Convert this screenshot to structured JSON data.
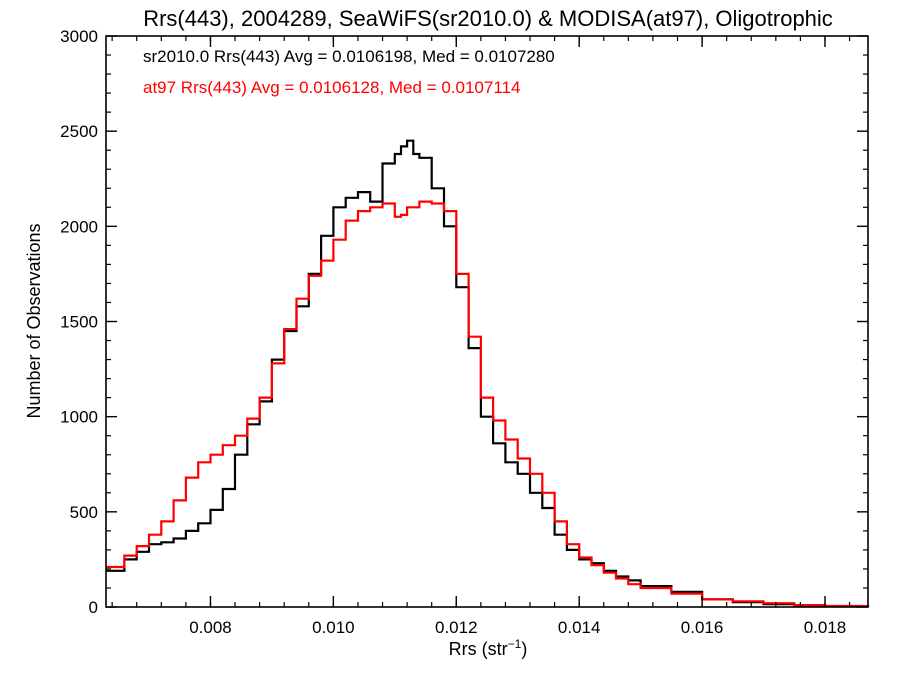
{
  "chart_data": {
    "type": "line",
    "title": "Rrs(443), 2004289, SeaWiFS(sr2010.0) & MODISA(at97), Oligotrophic",
    "xlabel_main": "Rrs (str",
    "xlabel_sup": "−1",
    "xlabel_close": ")",
    "ylabel": "Number of Observations",
    "xlim": [
      0.0063,
      0.0187
    ],
    "ylim": [
      0,
      3000
    ],
    "xticks": [
      0.008,
      0.01,
      0.012,
      0.014,
      0.016,
      0.018
    ],
    "xtick_labels": [
      "0.008",
      "0.010",
      "0.012",
      "0.014",
      "0.016",
      "0.018"
    ],
    "yticks": [
      0,
      500,
      1000,
      1500,
      2000,
      2500,
      3000
    ],
    "ytick_labels": [
      "0",
      "500",
      "1000",
      "1500",
      "2000",
      "2500",
      "3000"
    ],
    "grid": false,
    "legend_position": "top-left",
    "series": [
      {
        "name": "sr2010.0 Rrs(443) Avg = 0.0106198, Med = 0.0107280",
        "color": "#000000",
        "style": "step",
        "x": [
          0.0063,
          0.0066,
          0.0068,
          0.007,
          0.0072,
          0.0074,
          0.0076,
          0.0078,
          0.008,
          0.0082,
          0.0084,
          0.0086,
          0.0088,
          0.009,
          0.0092,
          0.0094,
          0.0096,
          0.0098,
          0.01,
          0.0102,
          0.0104,
          0.0106,
          0.0108,
          0.011,
          0.0111,
          0.0112,
          0.0113,
          0.0114,
          0.0116,
          0.0118,
          0.012,
          0.0122,
          0.0124,
          0.0126,
          0.0128,
          0.013,
          0.0132,
          0.0134,
          0.0136,
          0.0138,
          0.014,
          0.0142,
          0.0144,
          0.0146,
          0.0148,
          0.015,
          0.0155,
          0.016,
          0.0165,
          0.017,
          0.0175,
          0.018,
          0.0187
        ],
        "y": [
          190,
          250,
          290,
          330,
          340,
          360,
          400,
          440,
          510,
          620,
          800,
          960,
          1080,
          1300,
          1450,
          1580,
          1750,
          1950,
          2100,
          2150,
          2180,
          2130,
          2330,
          2380,
          2420,
          2450,
          2380,
          2360,
          2200,
          2000,
          1680,
          1360,
          1000,
          860,
          760,
          700,
          600,
          520,
          380,
          300,
          250,
          230,
          190,
          160,
          140,
          110,
          80,
          40,
          25,
          15,
          8,
          4,
          1
        ]
      },
      {
        "name": "at97 Rrs(443) Avg = 0.0106128, Med = 0.0107114",
        "color": "#ff0000",
        "style": "step",
        "x": [
          0.0063,
          0.0066,
          0.0068,
          0.007,
          0.0072,
          0.0074,
          0.0076,
          0.0078,
          0.008,
          0.0082,
          0.0084,
          0.0086,
          0.0088,
          0.009,
          0.0092,
          0.0094,
          0.0096,
          0.0098,
          0.01,
          0.0102,
          0.0104,
          0.0106,
          0.0108,
          0.011,
          0.0111,
          0.0112,
          0.0113,
          0.0114,
          0.0116,
          0.0118,
          0.012,
          0.0122,
          0.0124,
          0.0126,
          0.0128,
          0.013,
          0.0132,
          0.0134,
          0.0136,
          0.0138,
          0.014,
          0.0142,
          0.0144,
          0.0146,
          0.0148,
          0.015,
          0.0155,
          0.016,
          0.0165,
          0.017,
          0.0175,
          0.018,
          0.0187
        ],
        "y": [
          210,
          270,
          320,
          380,
          450,
          560,
          680,
          760,
          800,
          850,
          900,
          990,
          1100,
          1280,
          1460,
          1620,
          1740,
          1820,
          1930,
          2030,
          2080,
          2100,
          2120,
          2050,
          2060,
          2100,
          2100,
          2130,
          2120,
          2080,
          1750,
          1420,
          1100,
          980,
          880,
          780,
          700,
          600,
          450,
          330,
          260,
          220,
          180,
          150,
          120,
          100,
          70,
          40,
          30,
          20,
          10,
          5,
          2
        ]
      }
    ]
  }
}
